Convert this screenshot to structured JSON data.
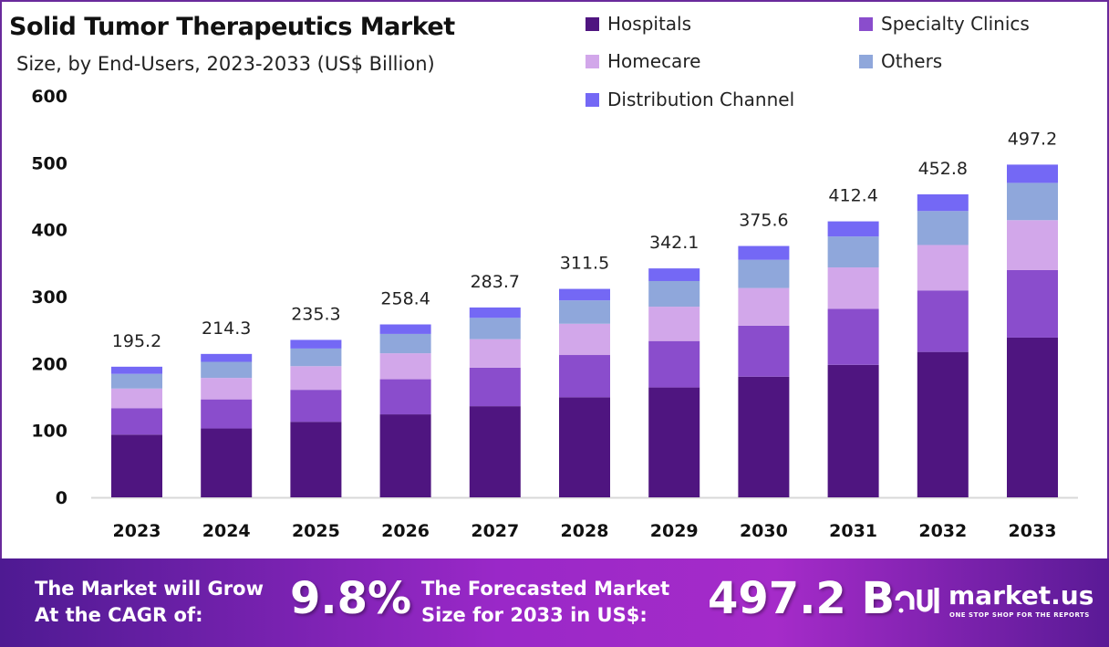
{
  "chart_data": {
    "type": "bar",
    "stacked": true,
    "title": "Solid Tumor Therapeutics  Market",
    "subtitle": "Size, by End-Users, 2023-2033 (US$ Billion)",
    "xlabel": "",
    "ylabel": "",
    "ylim": [
      0,
      600
    ],
    "yticks": [
      0,
      100,
      200,
      300,
      400,
      500,
      600
    ],
    "grid": false,
    "legend_position": "top-right",
    "categories": [
      "2023",
      "2024",
      "2025",
      "2026",
      "2027",
      "2028",
      "2029",
      "2030",
      "2031",
      "2032",
      "2033"
    ],
    "totals": [
      195.2,
      214.3,
      235.3,
      258.4,
      283.7,
      311.5,
      342.1,
      375.6,
      412.4,
      452.8,
      497.2
    ],
    "series": [
      {
        "name": "Hospitals",
        "color": "#4f1580",
        "values": [
          93.7,
          102.9,
          112.9,
          124.0,
          136.2,
          149.5,
          164.2,
          180.3,
          198.0,
          217.3,
          238.7
        ]
      },
      {
        "name": "Specialty Clinics",
        "color": "#8a4dcc",
        "values": [
          39.6,
          43.5,
          47.8,
          52.5,
          57.6,
          63.2,
          69.4,
          76.2,
          83.7,
          91.9,
          100.9
        ]
      },
      {
        "name": "Homecare",
        "color": "#d2a7ea",
        "values": [
          29.3,
          32.1,
          35.3,
          38.8,
          42.6,
          46.7,
          51.3,
          56.3,
          61.9,
          67.9,
          74.6
        ]
      },
      {
        "name": "Others",
        "color": "#8fa7db",
        "values": [
          21.9,
          24.0,
          26.4,
          28.9,
          31.8,
          34.9,
          38.3,
          42.1,
          46.2,
          50.7,
          55.7
        ]
      },
      {
        "name": "Distribution Channel",
        "color": "#7468f5",
        "values": [
          10.7,
          11.8,
          12.9,
          14.2,
          15.5,
          17.2,
          18.9,
          20.7,
          22.6,
          25.0,
          27.3
        ]
      }
    ]
  },
  "banner": {
    "cagr_text_1": "The Market will Grow",
    "cagr_text_2": "At the CAGR of:",
    "cagr_value": "9.8%",
    "forecast_text_1": "The Forecasted Market",
    "forecast_text_2": "Size for 2033 in US$:",
    "forecast_value": "497.2 B",
    "logo_name": "market.us",
    "logo_tagline": "ONE STOP SHOP FOR THE REPORTS"
  }
}
